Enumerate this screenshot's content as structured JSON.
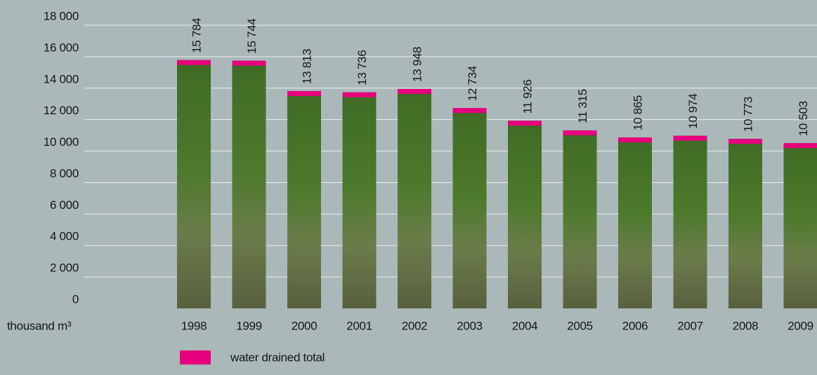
{
  "chart_data": {
    "type": "bar",
    "y_label": "thousand m³",
    "categories": [
      "1998",
      "1999",
      "2000",
      "2001",
      "2002",
      "2003",
      "2004",
      "2005",
      "2006",
      "2007",
      "2008",
      "2009"
    ],
    "series": [
      {
        "name": "water drained total",
        "color": "#e6007e",
        "values": [
          15784,
          15744,
          13813,
          13736,
          13948,
          12734,
          11926,
          11315,
          10865,
          10974,
          10773,
          10503
        ],
        "value_labels": [
          "15 784",
          "15 744",
          "13 813",
          "13 736",
          "13 948",
          "12 734",
          "11 926",
          "11 315",
          "10 865",
          "10 974",
          "10 773",
          "10 503"
        ]
      }
    ],
    "ylim": [
      0,
      18000
    ],
    "yticks": [
      0,
      {
        "value": 2000,
        "label": "2 000"
      },
      {
        "value": 4000,
        "label": "4 000"
      },
      {
        "value": 6000,
        "label": "6 000"
      },
      {
        "value": 8000,
        "label": "8 000"
      },
      {
        "value": 10000,
        "label": "10 000"
      },
      {
        "value": 12000,
        "label": "12 000"
      },
      {
        "value": 14000,
        "label": "14 000"
      },
      {
        "value": 16000,
        "label": "16 000"
      },
      {
        "value": 18000,
        "label": "18 000"
      }
    ],
    "grid": true
  }
}
